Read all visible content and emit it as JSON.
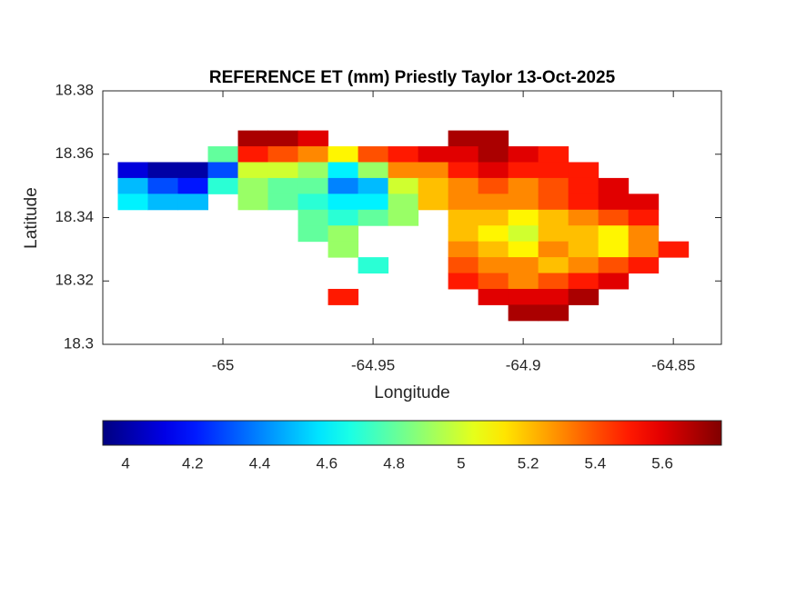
{
  "chart_data": {
    "type": "heatmap",
    "title": "REFERENCE ET (mm) Priestly Taylor 13-Oct-2025",
    "xlabel": "Longitude",
    "ylabel": "Latitude",
    "xlim": [
      -65.04,
      -64.834
    ],
    "ylim": [
      18.3,
      18.38
    ],
    "xticks": [
      -65,
      -64.95,
      -64.9,
      -64.85
    ],
    "yticks": [
      {
        "value": 18.3,
        "label": "18.3"
      },
      18.32,
      18.34,
      18.36,
      18.38
    ],
    "colormap": "jet",
    "clim": [
      3.932,
      5.776
    ],
    "cticks": [
      4,
      4.2,
      4.4,
      4.6,
      4.8,
      5,
      5.2,
      5.4,
      5.6
    ],
    "x": [
      -65.03,
      -65.02,
      -65.01,
      -65.0,
      -64.99,
      -64.98,
      -64.97,
      -64.96,
      -64.95,
      -64.94,
      -64.93,
      -64.92,
      -64.91,
      -64.9,
      -64.89,
      -64.88,
      -64.87,
      -64.86,
      -64.85
    ],
    "y": [
      18.365,
      18.36,
      18.355,
      18.35,
      18.345,
      18.34,
      18.335,
      18.33,
      18.325,
      18.32,
      18.315,
      18.31
    ],
    "z": [
      [
        null,
        null,
        null,
        null,
        5.7,
        5.7,
        5.6,
        null,
        null,
        null,
        null,
        5.7,
        5.7,
        null,
        null,
        null,
        null,
        null,
        null
      ],
      [
        null,
        null,
        null,
        4.8,
        5.5,
        5.4,
        5.3,
        5.1,
        5.4,
        5.5,
        5.6,
        5.6,
        5.7,
        5.6,
        5.5,
        null,
        null,
        null,
        null
      ],
      [
        4.1,
        4.0,
        4.0,
        4.3,
        5.0,
        5.0,
        4.9,
        4.6,
        4.9,
        5.3,
        5.3,
        5.5,
        5.6,
        5.5,
        5.5,
        5.5,
        null,
        null,
        null
      ],
      [
        4.5,
        4.3,
        4.2,
        4.7,
        4.9,
        4.8,
        4.8,
        4.4,
        4.5,
        5.0,
        5.2,
        5.3,
        5.4,
        5.3,
        5.4,
        5.5,
        5.6,
        null,
        null
      ],
      [
        4.6,
        4.5,
        4.5,
        null,
        4.9,
        4.8,
        4.7,
        4.6,
        4.6,
        4.9,
        5.2,
        5.3,
        5.3,
        5.3,
        5.4,
        5.5,
        5.6,
        5.6,
        null
      ],
      [
        null,
        null,
        null,
        null,
        null,
        null,
        4.8,
        4.7,
        4.8,
        4.9,
        null,
        5.2,
        5.2,
        5.1,
        5.2,
        5.3,
        5.4,
        5.5,
        null
      ],
      [
        null,
        null,
        null,
        null,
        null,
        null,
        4.8,
        4.9,
        null,
        null,
        null,
        5.2,
        5.1,
        5.0,
        5.2,
        5.2,
        5.1,
        5.3,
        null
      ],
      [
        null,
        null,
        null,
        null,
        null,
        null,
        null,
        4.9,
        null,
        null,
        null,
        5.3,
        5.2,
        5.1,
        5.3,
        5.2,
        5.1,
        5.3,
        5.5
      ],
      [
        null,
        null,
        null,
        null,
        null,
        null,
        null,
        null,
        4.7,
        null,
        null,
        5.4,
        5.3,
        5.3,
        5.2,
        5.3,
        5.4,
        5.5,
        null
      ],
      [
        null,
        null,
        null,
        null,
        null,
        null,
        null,
        null,
        null,
        null,
        null,
        5.5,
        5.4,
        5.3,
        5.4,
        5.5,
        5.6,
        null,
        null
      ],
      [
        null,
        null,
        null,
        null,
        null,
        null,
        null,
        5.5,
        null,
        null,
        null,
        null,
        5.6,
        5.6,
        5.6,
        5.7,
        null,
        null,
        null
      ],
      [
        null,
        null,
        null,
        null,
        null,
        null,
        null,
        null,
        null,
        null,
        null,
        null,
        null,
        5.7,
        5.7,
        null,
        null,
        null,
        null
      ]
    ]
  }
}
